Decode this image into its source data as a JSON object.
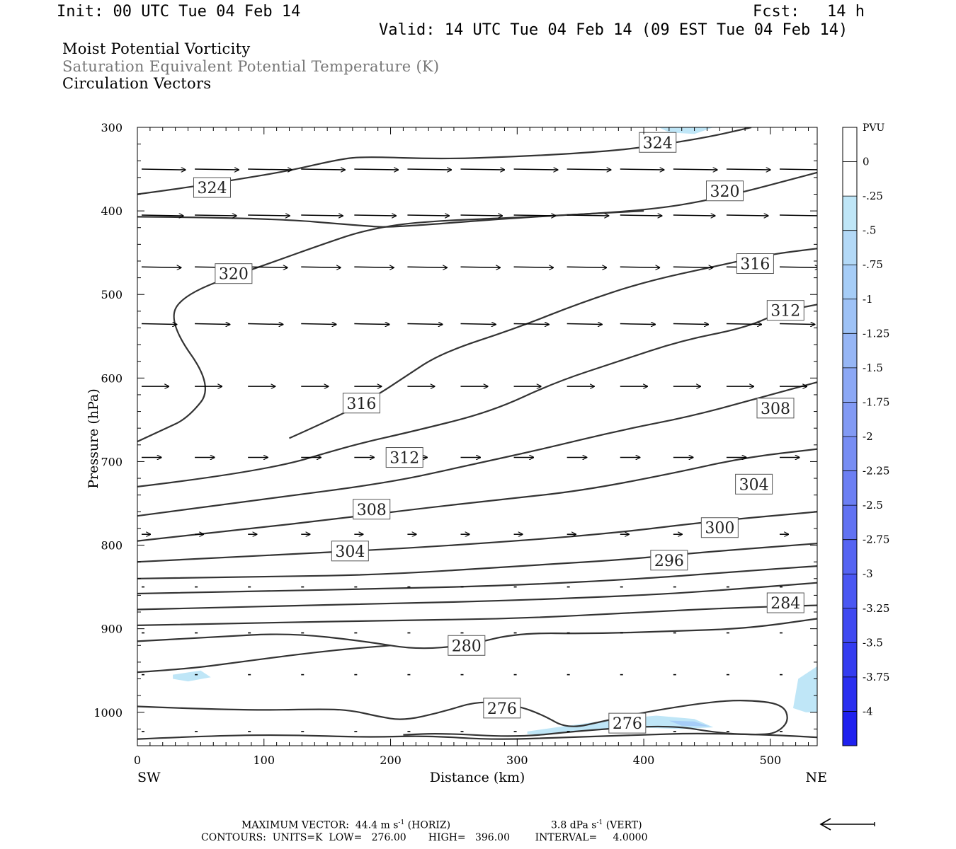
{
  "header": {
    "init": "Init: 00 UTC Tue 04 Feb 14",
    "fcst_label": "Fcst:",
    "fcst_value": "14 h",
    "valid": "Valid: 14 UTC Tue 04 Feb 14 (09 EST Tue 04 Feb 14)"
  },
  "fields": {
    "line1": "Moist Potential Vorticity",
    "line2": "Saturation Equivalent Potential Temperature (K)",
    "line3": "Circulation Vectors"
  },
  "footer": {
    "max_vector": "MAXIMUM VECTOR:  44.4 m s",
    "max_vector_horiz": "(HORIZ)",
    "max_vector_vert": "3.8 dPa s",
    "max_vector_vert_suffix": "(VERT)",
    "exponent": "-1",
    "contours": "CONTOURS:  UNITS=K  LOW=   276.00       HIGH=   396.00        INTERVAL=     4.0000"
  },
  "colors": {
    "contour": "#333333",
    "vector": "#000000",
    "mpv_light": "#bfe6f7",
    "colorbar": [
      "#ffffff",
      "#ffffff",
      "#bfe6f7",
      "#b3d9f7",
      "#a6cdf7",
      "#9ec2f6",
      "#96b6f5",
      "#8ca8f5",
      "#829af4",
      "#778df3",
      "#6c7ff3",
      "#6172f2",
      "#5564f2",
      "#4a57f2",
      "#3f49f1",
      "#343cf0",
      "#2a2ff0",
      "#1f21ef"
    ]
  },
  "chart_data": {
    "type": "line",
    "title": "",
    "xlabel": "Distance (km)",
    "ylabel": "Pressure (hPa)",
    "xlim": [
      0,
      537
    ],
    "ylim": [
      300,
      1040
    ],
    "x_ticks": [
      0,
      100,
      200,
      300,
      400,
      500
    ],
    "y_ticks": [
      300,
      400,
      500,
      600,
      700,
      800,
      900,
      1000
    ],
    "x_end_labels": {
      "left": "SW",
      "right": "NE"
    },
    "colorbar": {
      "unit": "PVU",
      "ticks": [
        "0",
        "-.25",
        "-.5",
        "-.75",
        "-1",
        "-1.25",
        "-1.5",
        "-1.75",
        "-2",
        "-2.25",
        "-2.5",
        "-2.75",
        "-3",
        "-3.25",
        "-3.5",
        "-3.75",
        "-4"
      ]
    },
    "contours": [
      {
        "value": 324,
        "points": [
          [
            0,
            380
          ],
          [
            40,
            372
          ],
          [
            80,
            362
          ],
          [
            120,
            352
          ],
          [
            160,
            338
          ],
          [
            180,
            335
          ],
          [
            240,
            338
          ],
          [
            300,
            335
          ],
          [
            360,
            330
          ],
          [
            400,
            324
          ],
          [
            450,
            312
          ],
          [
            485,
            300
          ]
        ]
      },
      {
        "value": 320,
        "points": [
          [
            0,
            407
          ],
          [
            100,
            408
          ],
          [
            180,
            418
          ],
          [
            200,
            420
          ],
          [
            300,
            408
          ],
          [
            400,
            400
          ],
          [
            460,
            385
          ],
          [
            537,
            354
          ]
        ]
      },
      {
        "value": 320,
        "points": [
          [
            0,
            676
          ],
          [
            20,
            662
          ],
          [
            40,
            648
          ],
          [
            60,
            610
          ],
          [
            25,
            535
          ],
          [
            35,
            500
          ],
          [
            100,
            465
          ],
          [
            150,
            438
          ],
          [
            180,
            423
          ],
          [
            220,
            413
          ],
          [
            300,
            408
          ],
          [
            400,
            400
          ]
        ]
      },
      {
        "value": 316,
        "points": [
          [
            120,
            672
          ],
          [
            160,
            645
          ],
          [
            190,
            620
          ],
          [
            210,
            600
          ],
          [
            240,
            570
          ],
          [
            300,
            540
          ],
          [
            350,
            510
          ],
          [
            400,
            485
          ],
          [
            460,
            465
          ],
          [
            500,
            452
          ],
          [
            537,
            445
          ]
        ]
      },
      {
        "value": 312,
        "points": [
          [
            0,
            730
          ],
          [
            100,
            712
          ],
          [
            170,
            680
          ],
          [
            220,
            663
          ],
          [
            280,
            640
          ],
          [
            330,
            605
          ],
          [
            380,
            580
          ],
          [
            430,
            555
          ],
          [
            480,
            540
          ],
          [
            510,
            520
          ],
          [
            537,
            512
          ]
        ]
      },
      {
        "value": 308,
        "points": [
          [
            0,
            765
          ],
          [
            100,
            745
          ],
          [
            200,
            725
          ],
          [
            260,
            705
          ],
          [
            320,
            685
          ],
          [
            380,
            663
          ],
          [
            440,
            645
          ],
          [
            500,
            620
          ],
          [
            537,
            605
          ]
        ]
      },
      {
        "value": 304,
        "points": [
          [
            0,
            795
          ],
          [
            80,
            782
          ],
          [
            160,
            768
          ],
          [
            230,
            755
          ],
          [
            290,
            745
          ],
          [
            350,
            735
          ],
          [
            420,
            715
          ],
          [
            480,
            695
          ],
          [
            537,
            685
          ]
        ]
      },
      {
        "value": 300,
        "points": [
          [
            0,
            820
          ],
          [
            100,
            812
          ],
          [
            200,
            805
          ],
          [
            300,
            795
          ],
          [
            380,
            785
          ],
          [
            450,
            772
          ],
          [
            537,
            760
          ]
        ]
      },
      {
        "value": 296,
        "points": [
          [
            0,
            840
          ],
          [
            100,
            838
          ],
          [
            200,
            835
          ],
          [
            300,
            825
          ],
          [
            380,
            818
          ],
          [
            450,
            808
          ],
          [
            537,
            798
          ]
        ]
      },
      {
        "value": 292,
        "points": [
          [
            0,
            858
          ],
          [
            100,
            855
          ],
          [
            200,
            852
          ],
          [
            300,
            848
          ],
          [
            400,
            840
          ],
          [
            470,
            832
          ],
          [
            537,
            825
          ]
        ]
      },
      {
        "value": 288,
        "points": [
          [
            0,
            877
          ],
          [
            100,
            873
          ],
          [
            200,
            870
          ],
          [
            300,
            866
          ],
          [
            400,
            860
          ],
          [
            470,
            853
          ],
          [
            537,
            845
          ]
        ]
      },
      {
        "value": 284,
        "points": [
          [
            0,
            896
          ],
          [
            100,
            893
          ],
          [
            200,
            890
          ],
          [
            300,
            888
          ],
          [
            400,
            880
          ],
          [
            470,
            875
          ],
          [
            537,
            872
          ]
        ]
      },
      {
        "value": 280,
        "points": [
          [
            0,
            915
          ],
          [
            60,
            910
          ],
          [
            120,
            905
          ],
          [
            180,
            915
          ],
          [
            220,
            925
          ],
          [
            260,
            920
          ],
          [
            300,
            905
          ],
          [
            360,
            906
          ],
          [
            420,
            903
          ],
          [
            480,
            900
          ],
          [
            537,
            888
          ]
        ]
      },
      {
        "value": 280,
        "points": [
          [
            0,
            952
          ],
          [
            40,
            948
          ],
          [
            80,
            940
          ],
          [
            120,
            932
          ],
          [
            160,
            925
          ],
          [
            200,
            920
          ]
        ]
      },
      {
        "value": 276,
        "points": [
          [
            0,
            993
          ],
          [
            80,
            998
          ],
          [
            150,
            996
          ],
          [
            170,
            998
          ],
          [
            190,
            1005
          ],
          [
            210,
            1010
          ],
          [
            240,
            1000
          ],
          [
            270,
            986
          ],
          [
            300,
            992
          ],
          [
            320,
            1003
          ],
          [
            340,
            1020
          ],
          [
            370,
            1010
          ],
          [
            400,
            1000
          ],
          [
            450,
            988
          ],
          [
            480,
            985
          ],
          [
            510,
            990
          ],
          [
            515,
            1010
          ],
          [
            505,
            1025
          ],
          [
            490,
            1027
          ],
          [
            460,
            1025
          ],
          [
            420,
            1015
          ],
          [
            350,
            1022
          ],
          [
            300,
            1030
          ],
          [
            240,
            1025
          ],
          [
            210,
            1027
          ]
        ]
      },
      {
        "value": 276,
        "points": [
          [
            0,
            1032
          ],
          [
            60,
            1028
          ],
          [
            120,
            1027
          ],
          [
            180,
            1030
          ],
          [
            230,
            1028
          ],
          [
            280,
            1033
          ],
          [
            340,
            1030
          ],
          [
            400,
            1027
          ],
          [
            440,
            1025
          ],
          [
            500,
            1027
          ],
          [
            537,
            1030
          ]
        ]
      }
    ],
    "contour_labels": [
      {
        "text": "324",
        "x": 59,
        "p": 372
      },
      {
        "text": "324",
        "x": 411,
        "p": 318
      },
      {
        "text": "320",
        "x": 464,
        "p": 376
      },
      {
        "text": "320",
        "x": 76,
        "p": 475
      },
      {
        "text": "316",
        "x": 488,
        "p": 463
      },
      {
        "text": "316",
        "x": 177,
        "p": 630
      },
      {
        "text": "312",
        "x": 512,
        "p": 519
      },
      {
        "text": "312",
        "x": 211,
        "p": 695
      },
      {
        "text": "308",
        "x": 504,
        "p": 636
      },
      {
        "text": "308",
        "x": 185,
        "p": 757
      },
      {
        "text": "304",
        "x": 487,
        "p": 727
      },
      {
        "text": "304",
        "x": 168,
        "p": 807
      },
      {
        "text": "300",
        "x": 460,
        "p": 779
      },
      {
        "text": "296",
        "x": 420,
        "p": 818
      },
      {
        "text": "284",
        "x": 512,
        "p": 869
      },
      {
        "text": "280",
        "x": 260,
        "p": 920
      },
      {
        "text": "276",
        "x": 288,
        "p": 995
      },
      {
        "text": "276",
        "x": 387,
        "p": 1013
      }
    ],
    "vectors": [
      {
        "p": 350,
        "x": [
          0,
          42,
          84,
          126,
          168,
          210,
          252,
          294,
          336,
          378,
          420,
          462,
          504
        ],
        "u": 1.0
      },
      {
        "p": 405,
        "x": [
          0,
          42,
          84,
          126,
          168,
          210,
          252,
          294,
          336,
          378,
          420,
          462,
          504
        ],
        "u": 0.95
      },
      {
        "p": 467,
        "x": [
          0,
          42,
          84,
          126,
          168,
          210,
          252,
          294,
          336,
          378,
          420,
          462,
          504
        ],
        "u": 0.9
      },
      {
        "p": 535,
        "x": [
          0,
          42,
          84,
          126,
          168,
          210,
          252,
          294,
          336,
          378,
          420,
          462,
          504
        ],
        "u": 0.8
      },
      {
        "p": 610,
        "x": [
          0,
          42,
          84,
          126,
          168,
          210,
          252,
          294,
          336,
          378,
          420,
          462,
          504
        ],
        "u": 0.62
      },
      {
        "p": 695,
        "x": [
          0,
          42,
          84,
          126,
          168,
          210,
          252,
          294,
          336,
          378,
          420,
          462,
          504
        ],
        "u": 0.45
      },
      {
        "p": 787,
        "x": [
          0,
          42,
          84,
          126,
          168,
          210,
          252,
          294,
          336,
          378,
          420,
          462,
          504
        ],
        "u": 0.2
      },
      {
        "p": 850,
        "x": [
          0,
          42,
          84,
          126,
          168,
          210,
          252,
          294,
          336,
          378,
          420,
          462,
          504
        ],
        "u": 0.06
      },
      {
        "p": 905,
        "x": [
          0,
          42,
          84,
          126,
          168,
          210,
          252,
          294,
          336,
          378,
          420,
          462,
          504
        ],
        "u": 0.03
      },
      {
        "p": 955,
        "x": [
          0,
          42,
          84,
          126,
          168,
          210,
          252,
          294,
          336,
          378,
          420,
          462,
          504
        ],
        "u": 0.03
      },
      {
        "p": 1023,
        "x": [
          0,
          42,
          84,
          126,
          168,
          210,
          252,
          294,
          336,
          378,
          420,
          462,
          504
        ],
        "u": 0.04
      }
    ],
    "mpv_shading": [
      {
        "level": "-.25",
        "points": [
          [
            28,
            955
          ],
          [
            50,
            950
          ],
          [
            58,
            958
          ],
          [
            40,
            963
          ],
          [
            28,
            960
          ]
        ]
      },
      {
        "level": "-.25",
        "points": [
          [
            308,
            1023
          ],
          [
            340,
            1016
          ],
          [
            380,
            1008
          ],
          [
            410,
            1004
          ],
          [
            440,
            1008
          ],
          [
            455,
            1018
          ],
          [
            430,
            1020
          ],
          [
            390,
            1018
          ],
          [
            350,
            1022
          ],
          [
            320,
            1027
          ],
          [
            308,
            1026
          ]
        ]
      },
      {
        "level": "-.5",
        "points": [
          [
            420,
            1010
          ],
          [
            440,
            1011
          ],
          [
            452,
            1017
          ],
          [
            430,
            1016
          ]
        ]
      },
      {
        "level": "-.25",
        "points": [
          [
            518,
            995
          ],
          [
            522,
            960
          ],
          [
            537,
            945
          ],
          [
            537,
            1000
          ],
          [
            528,
            1000
          ]
        ]
      },
      {
        "level": "-.25",
        "points": [
          [
            412,
            300
          ],
          [
            420,
            306
          ],
          [
            440,
            308
          ],
          [
            455,
            300
          ]
        ]
      }
    ]
  }
}
